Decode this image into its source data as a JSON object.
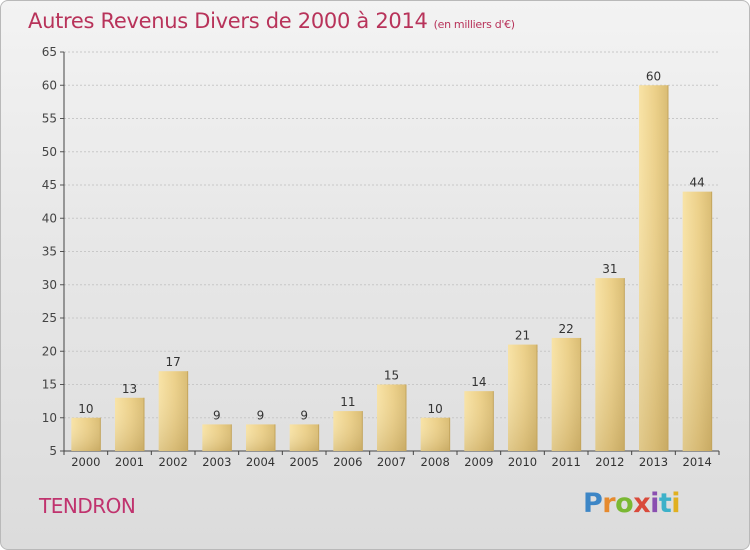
{
  "header": {
    "title": "Autres Revenus Divers de 2000 à 2014",
    "subtitle": "(en milliers d'€)"
  },
  "footer": {
    "place": "TENDRON",
    "brand": "Proxiti"
  },
  "colors": {
    "title": "#b8335a",
    "bar_light": "#f6dc98",
    "bar_dark": "#c7a860",
    "grid": "#c8c8c8"
  },
  "chart_data": {
    "type": "bar",
    "categories": [
      "2000",
      "2001",
      "2002",
      "2003",
      "2004",
      "2005",
      "2006",
      "2007",
      "2008",
      "2009",
      "2010",
      "2011",
      "2012",
      "2013",
      "2014"
    ],
    "values": [
      10,
      13,
      17,
      9,
      9,
      9,
      11,
      15,
      10,
      14,
      21,
      22,
      31,
      60,
      44
    ],
    "ylim": [
      5,
      65
    ],
    "yticks": [
      5,
      10,
      15,
      20,
      25,
      30,
      35,
      40,
      45,
      50,
      55,
      60,
      65
    ],
    "grid": true,
    "data_labels": true
  }
}
